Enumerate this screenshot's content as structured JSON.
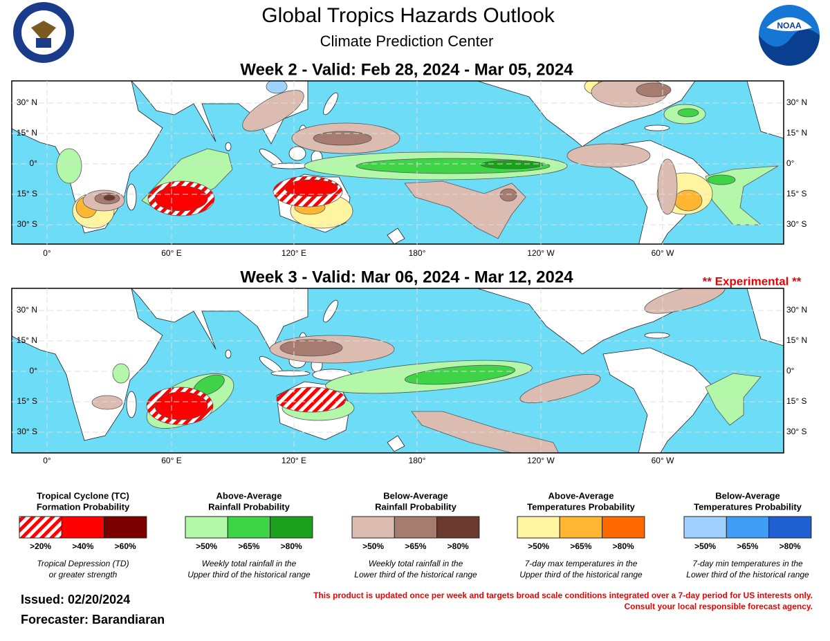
{
  "header": {
    "title": "Global Tropics Hazards Outlook",
    "subtitle": "Climate Prediction Center",
    "logo_text": "NOAA"
  },
  "maps": [
    {
      "heading": "Week 2 - Valid: Feb 28, 2024 - Mar 05, 2024",
      "lat_labels": [
        "30° N",
        "15° N",
        "0°",
        "15° S",
        "30° S"
      ],
      "lon_labels": [
        "0°",
        "60° E",
        "120° E",
        "180°",
        "120° W",
        "60° W"
      ]
    },
    {
      "heading": "Week 3 - Valid: Mar 06, 2024 - Mar 12, 2024",
      "note": "** Experimental **",
      "lat_labels": [
        "30° N",
        "15° N",
        "0°",
        "15° S",
        "30° S"
      ],
      "lon_labels": [
        "0°",
        "60° E",
        "120° E",
        "180°",
        "120° W",
        "60° W"
      ]
    }
  ],
  "legend": [
    {
      "title": [
        "Tropical Cyclone (TC)",
        "Formation Probability"
      ],
      "levels": [
        ">20%",
        ">40%",
        ">60%"
      ],
      "caption": [
        "Tropical Depression (TD)",
        "or greater strength"
      ]
    },
    {
      "title": [
        "Above-Average",
        "Rainfall Probability"
      ],
      "levels": [
        ">50%",
        ">65%",
        ">80%"
      ],
      "caption": [
        "Weekly total rainfall in the",
        "Upper third of the historical range"
      ]
    },
    {
      "title": [
        "Below-Average",
        "Rainfall Probability"
      ],
      "levels": [
        ">50%",
        ">65%",
        ">80%"
      ],
      "caption": [
        "Weekly total rainfall in the",
        "Lower third of the historical range"
      ]
    },
    {
      "title": [
        "Above-Average",
        "Temperatures Probability"
      ],
      "levels": [
        ">50%",
        ">65%",
        ">80%"
      ],
      "caption": [
        "7-day max temperatures in the",
        "Upper third of the historical range"
      ]
    },
    {
      "title": [
        "Below-Average",
        "Temperatures Probability"
      ],
      "levels": [
        ">50%",
        ">65%",
        ">80%"
      ],
      "caption": [
        "7-day min temperatures in the",
        "Lower third of the historical range"
      ]
    }
  ],
  "footer": {
    "issued": "Issued: 02/20/2024",
    "forecaster": "Forecaster: Barandiaran",
    "disclaimer": [
      "This product is updated once per week and targets broad scale conditions integrated over a 7-day period for US interests only.",
      "Consult your local responsible forecast agency."
    ]
  }
}
